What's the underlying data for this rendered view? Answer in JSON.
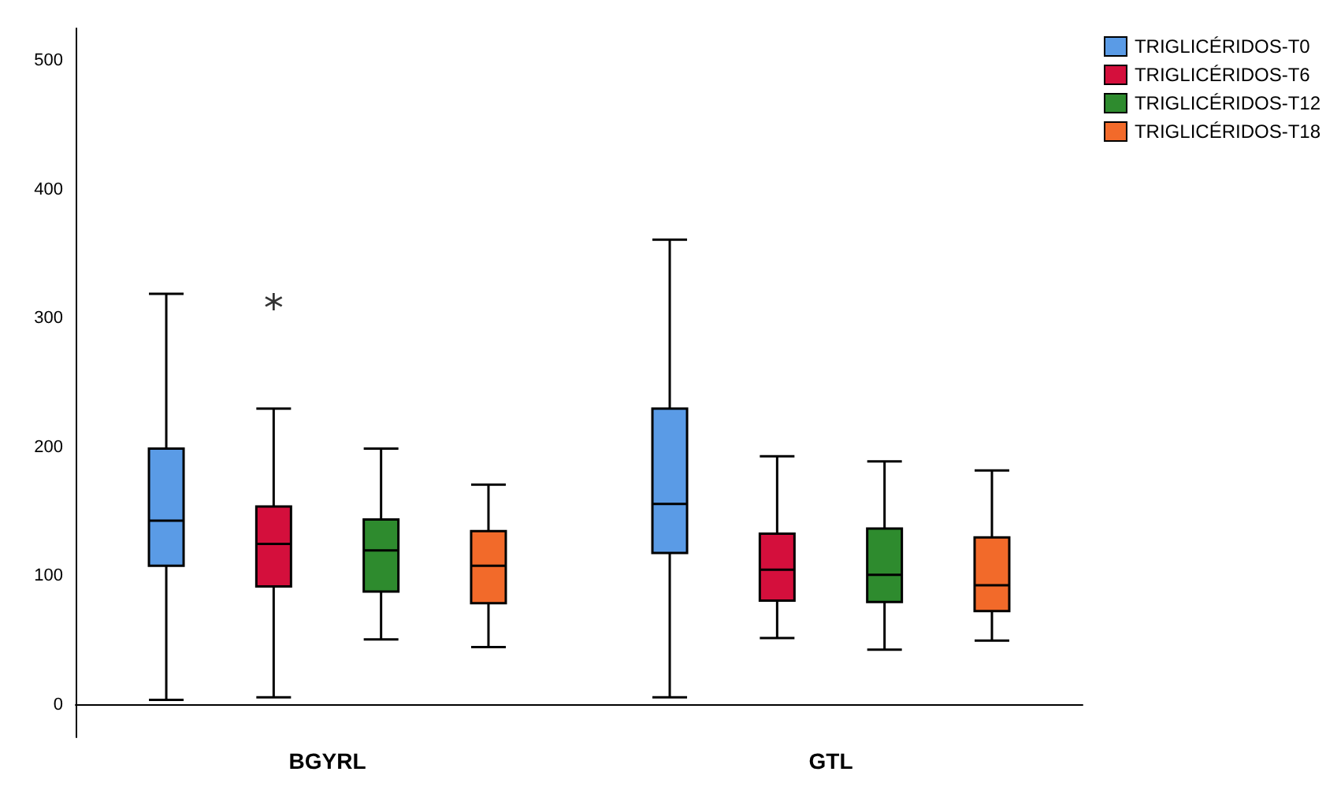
{
  "chart_data": {
    "type": "box",
    "categories": [
      "BGYRL",
      "GTL"
    ],
    "ylim": [
      -25,
      525
    ],
    "yticks": [
      0,
      100,
      200,
      300,
      400,
      500
    ],
    "grid": false,
    "legend": "top right",
    "series": [
      {
        "name": "TRIGLICÉRIDOS-T0",
        "color": "#5a9be6",
        "boxes": [
          {
            "low": 4,
            "q1": 108,
            "median": 143,
            "q3": 199,
            "high": 319
          },
          {
            "low": 6,
            "q1": 118,
            "median": 156,
            "q3": 230,
            "high": 361
          }
        ]
      },
      {
        "name": "TRIGLICÉRIDOS-T6",
        "color": "#d40f3c",
        "boxes": [
          {
            "low": 6,
            "q1": 92,
            "median": 125,
            "q3": 154,
            "high": 230,
            "outliers": [
              313
            ]
          },
          {
            "low": 52,
            "q1": 81,
            "median": 105,
            "q3": 133,
            "high": 193
          }
        ]
      },
      {
        "name": "TRIGLICÉRIDOS-T12",
        "color": "#2e8b2e",
        "boxes": [
          {
            "low": 51,
            "q1": 88,
            "median": 120,
            "q3": 144,
            "high": 199
          },
          {
            "low": 43,
            "q1": 80,
            "median": 101,
            "q3": 137,
            "high": 189
          }
        ]
      },
      {
        "name": "TRIGLICÉRIDOS-T18",
        "color": "#f26a2a",
        "boxes": [
          {
            "low": 45,
            "q1": 79,
            "median": 108,
            "q3": 135,
            "high": 171
          },
          {
            "low": 50,
            "q1": 73,
            "median": 93,
            "q3": 130,
            "high": 182
          }
        ]
      }
    ]
  }
}
